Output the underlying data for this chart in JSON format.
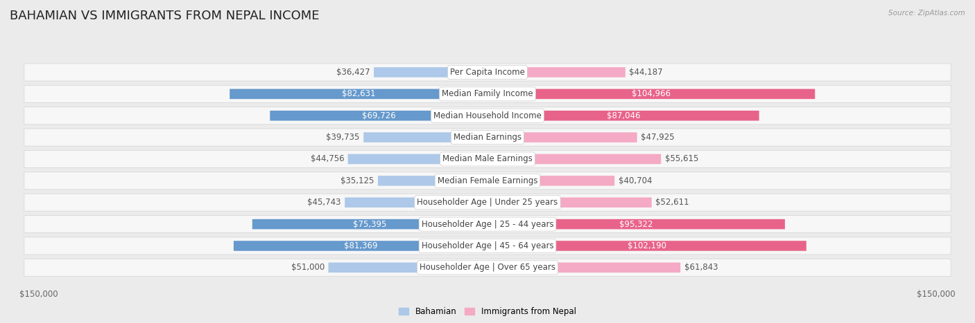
{
  "title": "Bahamian vs Immigrants from Nepal Income",
  "title_display": "BAHAMIAN VS IMMIGRANTS FROM NEPAL INCOME",
  "source": "Source: ZipAtlas.com",
  "categories": [
    "Per Capita Income",
    "Median Family Income",
    "Median Household Income",
    "Median Earnings",
    "Median Male Earnings",
    "Median Female Earnings",
    "Householder Age | Under 25 years",
    "Householder Age | 25 - 44 years",
    "Householder Age | 45 - 64 years",
    "Householder Age | Over 65 years"
  ],
  "bahamian_values": [
    36427,
    82631,
    69726,
    39735,
    44756,
    35125,
    45743,
    75395,
    81369,
    51000
  ],
  "nepal_values": [
    44187,
    104966,
    87046,
    47925,
    55615,
    40704,
    52611,
    95322,
    102190,
    61843
  ],
  "bahamian_color_light": "#adc8e8",
  "bahamian_color_dark": "#6699cc",
  "nepal_color_light": "#f4aac4",
  "nepal_color_dark": "#e8638a",
  "x_max": 150000,
  "x_label_left": "$150,000",
  "x_label_right": "$150,000",
  "background_color": "#ebebeb",
  "row_bg_color": "#f7f7f7",
  "row_border_color": "#d8d8d8",
  "legend_bahamian": "Bahamian",
  "legend_nepal": "Immigrants from Nepal",
  "title_fontsize": 13,
  "label_fontsize": 8.5,
  "value_fontsize": 8.5,
  "bah_dark_threshold": 60000,
  "nep_dark_threshold": 85000
}
